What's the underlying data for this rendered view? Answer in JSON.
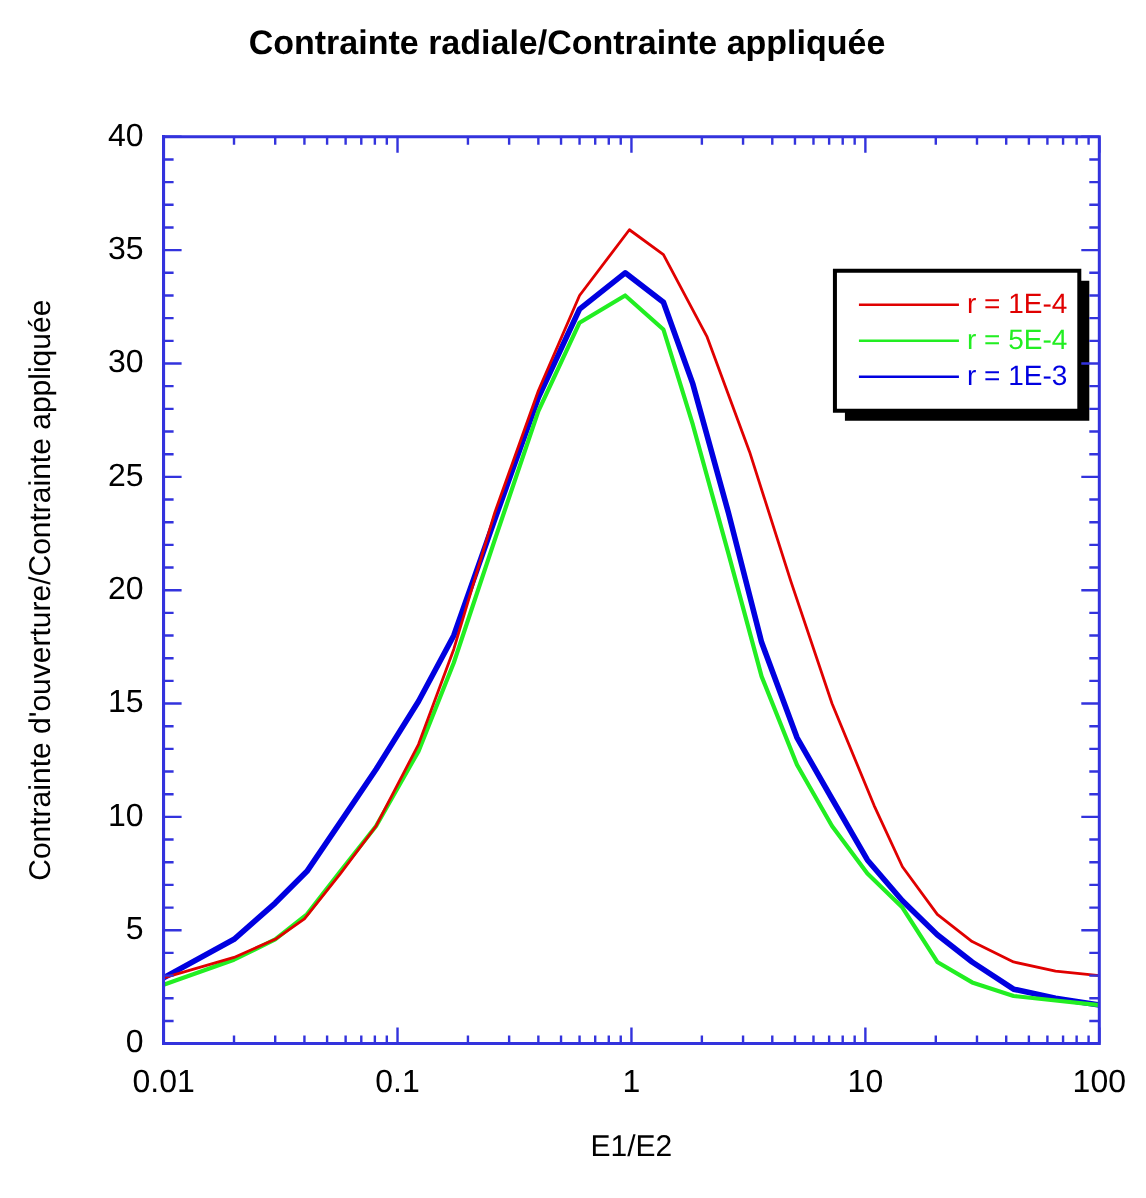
{
  "chart_data": {
    "type": "line",
    "title": "Contrainte radiale/Contrainte appliquée",
    "xlabel": "E1/E2",
    "ylabel": "Contrainte d'ouverture/Contrainte appliquée",
    "log": "x",
    "xlim": [
      0.01,
      100
    ],
    "xticks": [
      0.01,
      {
        "value": 0.02,
        "label": null
      },
      {
        "value": 0.03,
        "label": null
      },
      {
        "value": 0.04,
        "label": null
      },
      {
        "value": 0.05,
        "label": null
      },
      {
        "value": 0.06,
        "label": null
      },
      {
        "value": 0.07,
        "label": null
      },
      {
        "value": 0.08,
        "label": null
      },
      {
        "value": 0.09,
        "label": null
      },
      0.1,
      {
        "value": 0.2,
        "label": null
      },
      {
        "value": 0.3,
        "label": null
      },
      {
        "value": 0.4,
        "label": null
      },
      {
        "value": 0.5,
        "label": null
      },
      {
        "value": 0.6,
        "label": null
      },
      {
        "value": 0.7,
        "label": null
      },
      {
        "value": 0.8,
        "label": null
      },
      {
        "value": 0.9,
        "label": null
      },
      1,
      {
        "value": 2,
        "label": null
      },
      {
        "value": 3,
        "label": null
      },
      {
        "value": 4,
        "label": null
      },
      {
        "value": 5,
        "label": null
      },
      {
        "value": 6,
        "label": null
      },
      {
        "value": 7,
        "label": null
      },
      {
        "value": 8,
        "label": null
      },
      {
        "value": 9,
        "label": null
      },
      10,
      {
        "value": 20,
        "label": null
      },
      {
        "value": 30,
        "label": null
      },
      {
        "value": 40,
        "label": null
      },
      {
        "value": 50,
        "label": null
      },
      {
        "value": 60,
        "label": null
      },
      {
        "value": 70,
        "label": null
      },
      {
        "value": 80,
        "label": null
      },
      {
        "value": 90,
        "label": null
      },
      100
    ],
    "ylim": [
      0,
      40
    ],
    "yticks": [
      0,
      {
        "value": 1,
        "label": null
      },
      {
        "value": 2,
        "label": null
      },
      {
        "value": 3,
        "label": null
      },
      {
        "value": 4,
        "label": null
      },
      5,
      {
        "value": 6,
        "label": null
      },
      {
        "value": 7,
        "label": null
      },
      {
        "value": 8,
        "label": null
      },
      {
        "value": 9,
        "label": null
      },
      10,
      {
        "value": 11,
        "label": null
      },
      {
        "value": 12,
        "label": null
      },
      {
        "value": 13,
        "label": null
      },
      {
        "value": 14,
        "label": null
      },
      15,
      {
        "value": 16,
        "label": null
      },
      {
        "value": 17,
        "label": null
      },
      {
        "value": 18,
        "label": null
      },
      {
        "value": 19,
        "label": null
      },
      20,
      {
        "value": 21,
        "label": null
      },
      {
        "value": 22,
        "label": null
      },
      {
        "value": 23,
        "label": null
      },
      {
        "value": 24,
        "label": null
      },
      25,
      {
        "value": 26,
        "label": null
      },
      {
        "value": 27,
        "label": null
      },
      {
        "value": 28,
        "label": null
      },
      {
        "value": 29,
        "label": null
      },
      30,
      {
        "value": 31,
        "label": null
      },
      {
        "value": 32,
        "label": null
      },
      {
        "value": 33,
        "label": null
      },
      {
        "value": 34,
        "label": null
      },
      35,
      {
        "value": 36,
        "label": null
      },
      {
        "value": 37,
        "label": null
      },
      {
        "value": 38,
        "label": null
      },
      {
        "value": 39,
        "label": null
      },
      40
    ],
    "grid": false,
    "legend": "top right",
    "marker": "none",
    "line_style": "solid",
    "series": [
      {
        "name": "r = 1E-4",
        "color": "#e00000",
        "x": [
          0.01,
          0.02,
          0.03,
          0.04,
          0.057,
          0.081,
          0.123,
          0.174,
          0.26,
          0.4,
          0.6,
          0.98,
          1.37,
          2.1,
          3.2,
          4.8,
          7.2,
          10.9,
          14.4,
          20.3,
          28.6,
          43,
          65,
          100
        ],
        "values": [
          2.9,
          3.8,
          4.6,
          5.5,
          7.5,
          9.6,
          13.2,
          17.4,
          23.4,
          28.8,
          33.0,
          35.9,
          34.8,
          31.2,
          26.1,
          20.4,
          15.0,
          10.5,
          7.8,
          5.7,
          4.5,
          3.6,
          3.2,
          3.0
        ]
      },
      {
        "name": "r = 5E-4",
        "color": "#22ee22",
        "x": [
          0.01,
          0.02,
          0.03,
          0.041,
          0.057,
          0.081,
          0.123,
          0.174,
          0.26,
          0.4,
          0.6,
          0.94,
          1.37,
          1.83,
          2.6,
          3.6,
          5.1,
          7.2,
          10.2,
          14.4,
          20.3,
          28.6,
          43,
          65,
          100
        ],
        "values": [
          2.6,
          3.7,
          4.6,
          5.7,
          7.6,
          9.6,
          12.9,
          16.8,
          22.2,
          27.9,
          31.8,
          33.0,
          31.5,
          27.3,
          21.6,
          16.2,
          12.3,
          9.6,
          7.5,
          6.0,
          3.6,
          2.7,
          2.1,
          1.9,
          1.7
        ]
      },
      {
        "name": "r = 1E-3",
        "color": "#0000e0",
        "x": [
          0.01,
          0.02,
          0.03,
          0.041,
          0.059,
          0.081,
          0.123,
          0.174,
          0.26,
          0.4,
          0.6,
          0.94,
          1.37,
          1.83,
          2.6,
          3.6,
          5.1,
          7.2,
          10.2,
          14.4,
          20.3,
          28.6,
          43,
          65,
          100
        ],
        "values": [
          2.9,
          4.6,
          6.2,
          7.6,
          10.0,
          12.1,
          15.1,
          18.0,
          23.1,
          28.5,
          32.4,
          34.0,
          32.7,
          29.1,
          23.4,
          17.7,
          13.5,
          10.8,
          8.1,
          6.3,
          4.8,
          3.6,
          2.4,
          2.0,
          1.7
        ]
      }
    ]
  }
}
